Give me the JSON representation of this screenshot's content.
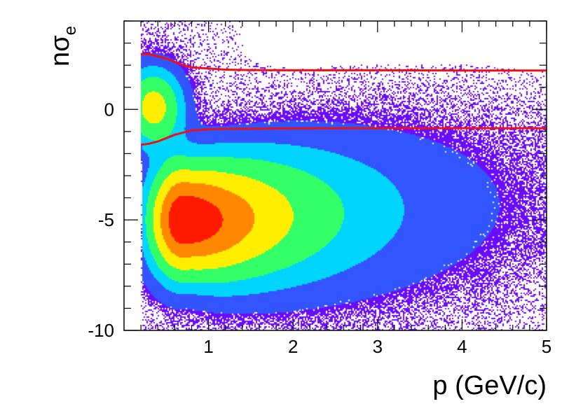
{
  "chart_data": {
    "type": "heatmap",
    "title": "",
    "xlabel": "p (GeV/c)",
    "ylabel_main": "nσ",
    "ylabel_sub": "e",
    "xlim": [
      0.0,
      5.0
    ],
    "ylim": [
      -10,
      4
    ],
    "x_ticks": [
      1,
      2,
      3,
      4,
      5
    ],
    "x_tick_labels": [
      "1",
      "2",
      "3",
      "4",
      "5"
    ],
    "y_ticks": [
      -10,
      -5,
      0
    ],
    "y_tick_labels": [
      "-10",
      "-5",
      "0"
    ],
    "grid": false,
    "legend": "none",
    "colormap": [
      "#6a0dff",
      "#3355ff",
      "#00d5ff",
      "#33ff66",
      "#ffee00",
      "#ff8800",
      "#ff1a00"
    ],
    "density_components": [
      {
        "name_hidden": "electron band",
        "center_x": 0.35,
        "center_y": 0.1,
        "weight": 0.45,
        "spread_x": 0.22,
        "spread_y": 1.1
      },
      {
        "name_hidden": "hadron band",
        "center_x": 0.85,
        "center_y": -5.0,
        "weight": 1.0,
        "spread_x": 0.9,
        "spread_y": 1.6
      }
    ],
    "series": [
      {
        "role": "upper cut",
        "x": [
          0.2,
          0.3,
          0.4,
          0.5,
          0.6,
          0.7,
          0.8,
          1.0,
          1.2,
          1.5,
          2.0,
          3.0,
          4.0,
          5.0
        ],
        "y": [
          2.5,
          2.5,
          2.4,
          2.3,
          2.15,
          2.0,
          1.9,
          1.85,
          1.8,
          1.78,
          1.77,
          1.77,
          1.76,
          1.76
        ]
      },
      {
        "role": "lower cut",
        "x": [
          0.2,
          0.3,
          0.4,
          0.5,
          0.6,
          0.7,
          0.8,
          1.0,
          1.2,
          1.5,
          2.0,
          3.0,
          4.0,
          5.0
        ],
        "y": [
          -1.6,
          -1.55,
          -1.45,
          -1.3,
          -1.15,
          -1.05,
          -0.95,
          -0.9,
          -0.88,
          -0.87,
          -0.86,
          -0.85,
          -0.85,
          -0.85
        ]
      }
    ],
    "cut_line_color": "#ee1111"
  }
}
